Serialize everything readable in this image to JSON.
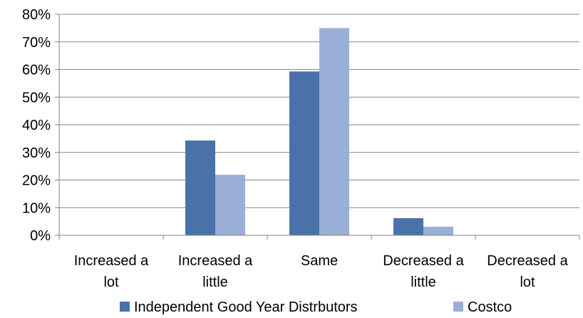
{
  "chart_data": {
    "type": "bar",
    "title": "",
    "xlabel": "",
    "ylabel": "",
    "ylim": [
      0,
      0.8
    ],
    "y_ticks": [
      "0%",
      "10%",
      "20%",
      "30%",
      "40%",
      "50%",
      "60%",
      "70%",
      "80%"
    ],
    "y_tick_values": [
      0,
      0.1,
      0.2,
      0.3,
      0.4,
      0.5,
      0.6,
      0.7,
      0.8
    ],
    "grid": true,
    "legend_position": "bottom",
    "categories": [
      [
        "Increased a",
        "lot"
      ],
      [
        "Increased a",
        "little"
      ],
      [
        "Same"
      ],
      [
        "Decreased a",
        "little"
      ],
      [
        "Decreased a",
        "lot"
      ]
    ],
    "series": [
      {
        "name": "Independent Good Year Distrbutors",
        "color": "#4a72a8",
        "values": [
          0,
          0.343,
          0.593,
          0.062,
          0
        ]
      },
      {
        "name": "Costco",
        "color": "#9aafd6",
        "values": [
          0,
          0.219,
          0.75,
          0.031,
          0
        ]
      }
    ]
  }
}
